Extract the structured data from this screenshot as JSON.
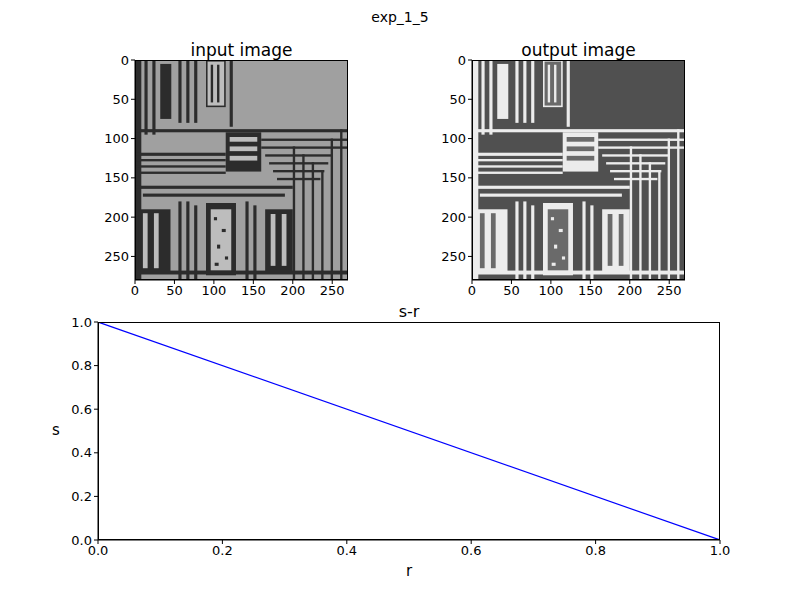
{
  "title": "exp_1_5",
  "chart_data": [
    {
      "type": "image",
      "title": "input image",
      "xlim": [
        0,
        270
      ],
      "ylim": [
        280,
        0
      ],
      "xticks": [
        0,
        50,
        100,
        150,
        200,
        250
      ],
      "yticks": [
        0,
        50,
        100,
        150,
        200,
        250
      ]
    },
    {
      "type": "image",
      "title": "output image",
      "xlim": [
        0,
        270
      ],
      "ylim": [
        280,
        0
      ],
      "xticks": [
        0,
        50,
        100,
        150,
        200,
        250
      ],
      "yticks": [
        0,
        50,
        100,
        150,
        200,
        250
      ]
    },
    {
      "type": "line",
      "title": "s-r",
      "x_label": "r",
      "y_label": "s",
      "x": [
        0,
        1
      ],
      "values": [
        1,
        0
      ],
      "color": "#0000ff",
      "xlim": [
        0,
        1
      ],
      "ylim": [
        0,
        1
      ],
      "xticks": [
        {
          "value": 0,
          "label": "0.0"
        },
        0.2,
        0.4,
        0.6,
        0.8,
        {
          "value": 1,
          "label": "1.0"
        }
      ],
      "yticks": [
        {
          "value": 0,
          "label": "0.0"
        },
        0.2,
        0.4,
        0.6,
        0.8,
        {
          "value": 1,
          "label": "1.0"
        }
      ]
    }
  ]
}
